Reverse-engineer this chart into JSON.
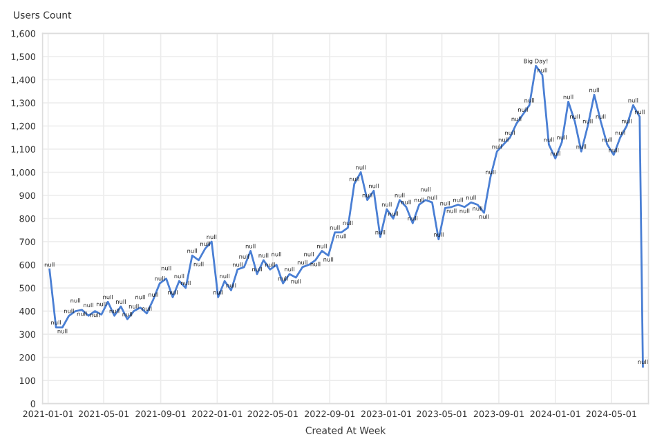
{
  "chart_data": {
    "type": "line",
    "xlabel": "Created At Week",
    "ylabel": "Users Count",
    "x": [
      "2021-01-04",
      "2021-01-18",
      "2021-02-01",
      "2021-02-15",
      "2021-03-01",
      "2021-03-15",
      "2021-03-29",
      "2021-04-12",
      "2021-04-26",
      "2021-05-10",
      "2021-05-24",
      "2021-06-07",
      "2021-06-21",
      "2021-07-05",
      "2021-07-19",
      "2021-08-02",
      "2021-08-16",
      "2021-08-30",
      "2021-09-13",
      "2021-09-27",
      "2021-10-11",
      "2021-10-25",
      "2021-11-08",
      "2021-11-22",
      "2021-12-06",
      "2021-12-20",
      "2022-01-03",
      "2022-01-17",
      "2022-01-31",
      "2022-02-14",
      "2022-02-28",
      "2022-03-14",
      "2022-03-28",
      "2022-04-11",
      "2022-04-25",
      "2022-05-09",
      "2022-05-23",
      "2022-06-06",
      "2022-06-20",
      "2022-07-04",
      "2022-07-18",
      "2022-08-01",
      "2022-08-15",
      "2022-08-29",
      "2022-09-12",
      "2022-09-26",
      "2022-10-10",
      "2022-10-24",
      "2022-11-07",
      "2022-11-21",
      "2022-12-05",
      "2022-12-19",
      "2023-01-02",
      "2023-01-16",
      "2023-01-30",
      "2023-02-13",
      "2023-02-27",
      "2023-03-13",
      "2023-03-27",
      "2023-04-10",
      "2023-04-24",
      "2023-05-08",
      "2023-05-22",
      "2023-06-05",
      "2023-06-19",
      "2023-07-03",
      "2023-07-17",
      "2023-07-31",
      "2023-08-14",
      "2023-08-28",
      "2023-09-11",
      "2023-09-25",
      "2023-10-09",
      "2023-10-23",
      "2023-11-06",
      "2023-11-20",
      "2023-12-04",
      "2023-12-18",
      "2024-01-01",
      "2024-01-15",
      "2024-01-29",
      "2024-02-12",
      "2024-02-26",
      "2024-03-11",
      "2024-03-25",
      "2024-04-08",
      "2024-04-22",
      "2024-05-06",
      "2024-05-20",
      "2024-06-03",
      "2024-06-17",
      "2024-07-01",
      "2024-07-08"
    ],
    "series": [
      {
        "color": "#4a7fd4",
        "values": [
          580,
          330,
          330,
          380,
          400,
          405,
          380,
          400,
          385,
          440,
          380,
          420,
          365,
          400,
          415,
          390,
          450,
          520,
          540,
          460,
          530,
          500,
          640,
          620,
          670,
          700,
          460,
          530,
          490,
          580,
          590,
          660,
          560,
          620,
          580,
          600,
          520,
          560,
          545,
          590,
          600,
          620,
          660,
          640,
          740,
          740,
          760,
          950,
          1000,
          880,
          920,
          720,
          840,
          800,
          880,
          850,
          780,
          860,
          880,
          870,
          710,
          845,
          850,
          860,
          850,
          870,
          860,
          825,
          980,
          1090,
          1120,
          1150,
          1210,
          1250,
          1290,
          1460,
          1420,
          1120,
          1060,
          1130,
          1305,
          1220,
          1090,
          1200,
          1335,
          1220,
          1120,
          1075,
          1150,
          1200,
          1290,
          1240,
          160
        ],
        "value_labels": [
          "null",
          "null",
          "null",
          "null",
          "null",
          "null",
          "null",
          "null",
          "null",
          "null",
          "null",
          "null",
          "null",
          "null",
          "null",
          "null",
          "null",
          "null",
          "null",
          "null",
          "null",
          "null",
          "null",
          "null",
          "null",
          "null",
          "null",
          "null",
          "null",
          "null",
          "null",
          "null",
          "null",
          "null",
          "null",
          "null",
          "null",
          "null",
          "null",
          "null",
          "null",
          "null",
          "null",
          "null",
          "null",
          "null",
          "null",
          "null",
          "null",
          "null",
          "null",
          "null",
          "null",
          "null",
          "null",
          "null",
          "null",
          "null",
          "null",
          "null",
          "null",
          "null",
          "null",
          "null",
          "null",
          "null",
          "null",
          "null",
          "null",
          "null",
          "null",
          "null",
          "null",
          "null",
          "null",
          "Big Day!",
          "null",
          "null",
          "null",
          "null",
          "null",
          "null",
          "null",
          "null",
          "null",
          "null",
          "null",
          "null",
          "null",
          "null",
          "null",
          "null",
          "null"
        ]
      }
    ],
    "xlim": [
      "2020-12-20",
      "2024-07-20"
    ],
    "ylim": [
      0,
      1600
    ],
    "xticks": [
      {
        "value": "2021-01-01",
        "label": "2021-01-01"
      },
      {
        "value": "2021-05-01",
        "label": "2021-05-01"
      },
      {
        "value": "2021-09-01",
        "label": "2021-09-01"
      },
      {
        "value": "2022-01-01",
        "label": "2022-01-01"
      },
      {
        "value": "2022-05-01",
        "label": "2022-05-01"
      },
      {
        "value": "2022-09-01",
        "label": "2022-09-01"
      },
      {
        "value": "2023-01-01",
        "label": "2023-01-01"
      },
      {
        "value": "2023-05-01",
        "label": "2023-05-01"
      },
      {
        "value": "2023-09-01",
        "label": "2023-09-01"
      },
      {
        "value": "2024-01-01",
        "label": "2024-01-01"
      },
      {
        "value": "2024-05-01",
        "label": "2024-05-01"
      }
    ],
    "yticks": [
      0,
      100,
      200,
      300,
      400,
      500,
      600,
      700,
      800,
      900,
      {
        "value": 1000,
        "label": "1,000"
      },
      {
        "value": 1100,
        "label": "1,100"
      },
      {
        "value": 1200,
        "label": "1,200"
      },
      {
        "value": 1300,
        "label": "1,300"
      },
      {
        "value": 1400,
        "label": "1,400"
      },
      {
        "value": 1500,
        "label": "1,500"
      },
      {
        "value": 1600,
        "label": "1,600"
      }
    ],
    "grid": true,
    "marker": "none",
    "line_style": "solid"
  }
}
